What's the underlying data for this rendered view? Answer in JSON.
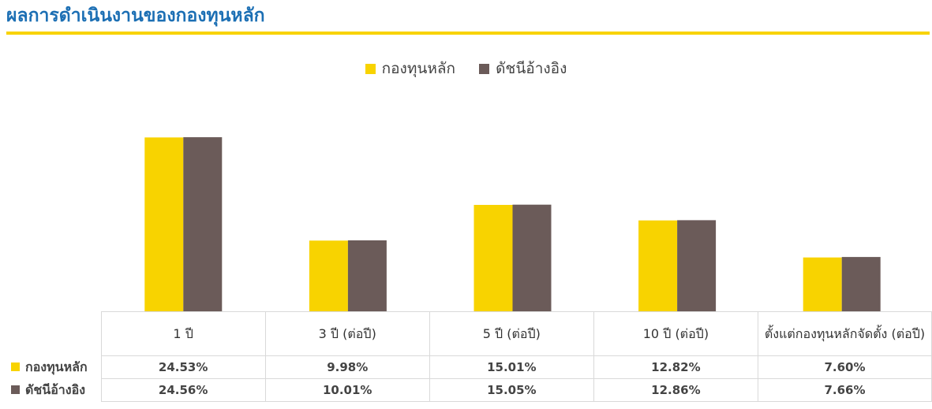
{
  "title": "ผลการดำเนินงานของกองทุนหลัก",
  "colors": {
    "fund": "#f8d300",
    "benchmark": "#6b5b59",
    "title": "#1c6fb4"
  },
  "chart_data": {
    "type": "bar",
    "categories": [
      "1 ปี",
      "3 ปี (ต่อปี)",
      "5 ปี (ต่อปี)",
      "10 ปี (ต่อปี)",
      "ตั้งแต่กองทุนหลักจัดตั้ง (ต่อปี)"
    ],
    "series": [
      {
        "name": "กองทุนหลัก",
        "values": [
          24.53,
          9.98,
          15.01,
          12.82,
          7.6
        ],
        "labels": [
          "24.53%",
          "9.98%",
          "15.01%",
          "12.82%",
          "7.60%"
        ]
      },
      {
        "name": "ดัชนีอ้างอิง",
        "values": [
          24.56,
          10.01,
          15.05,
          12.86,
          7.66
        ],
        "labels": [
          "24.56%",
          "10.01%",
          "15.05%",
          "12.86%",
          "7.66%"
        ]
      }
    ],
    "ylim": [
      0,
      27.8
    ],
    "grid": false,
    "legend": "top-center"
  }
}
